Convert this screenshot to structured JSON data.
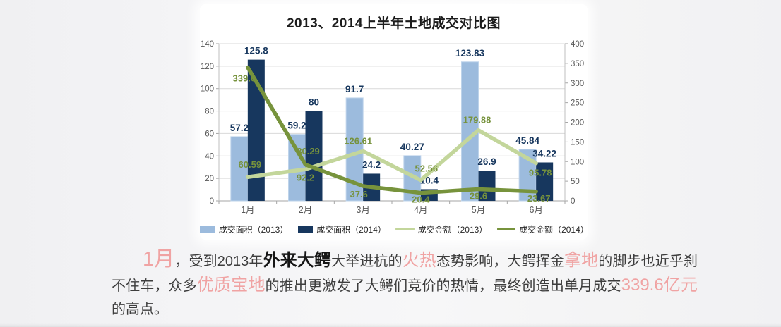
{
  "chart_data": {
    "type": "bar",
    "subtype": "combo bar+line, dual axis",
    "title": "2013、2014上半年土地成交对比图",
    "categories": [
      "1月",
      "2月",
      "3月",
      "4月",
      "5月",
      "6月"
    ],
    "series": [
      {
        "name": "成交面积（2013）",
        "kind": "bar",
        "axis": "left",
        "color": "#9cbbdd",
        "values": [
          57.2,
          59.2,
          91.7,
          40.27,
          123.83,
          45.84
        ]
      },
      {
        "name": "成交面积（2014）",
        "kind": "bar",
        "axis": "left",
        "color": "#17375e",
        "values": [
          125.8,
          80,
          24.2,
          10.4,
          26.9,
          34.22
        ]
      },
      {
        "name": "成交金额（2013）",
        "kind": "line",
        "axis": "right",
        "color": "#c3d69b",
        "values": [
          60.59,
          80.29,
          126.61,
          52.56,
          179.88,
          95.78
        ]
      },
      {
        "name": "成交金额（2014）",
        "kind": "line",
        "axis": "right",
        "color": "#77933c",
        "values": [
          339.6,
          92.2,
          37.6,
          20.4,
          29.6,
          23.67
        ]
      }
    ],
    "left_axis": {
      "min": 0,
      "max": 140,
      "step": 20,
      "ticks": [
        0,
        20,
        40,
        60,
        80,
        100,
        120,
        140
      ]
    },
    "right_axis": {
      "min": 0,
      "max": 400,
      "step": 50,
      "ticks": [
        0,
        50,
        100,
        150,
        200,
        250,
        300,
        350,
        400
      ]
    },
    "grid": true,
    "legend_position": "bottom",
    "label_colors": {
      "bar_labels": "#17375e",
      "line_labels": "#76923c"
    }
  },
  "paragraph": {
    "segments": [
      {
        "text": "1月",
        "emphasis": "pink-xl"
      },
      {
        "text": "，受到2013年",
        "emphasis": "none"
      },
      {
        "text": "外来大鳄",
        "emphasis": "black-lg"
      },
      {
        "text": "大举进杭的",
        "emphasis": "none"
      },
      {
        "text": "火热",
        "emphasis": "pink-lg"
      },
      {
        "text": "态势影响，大鳄挥金",
        "emphasis": "none"
      },
      {
        "text": "拿地",
        "emphasis": "pink-lg"
      },
      {
        "text": "的脚步也近乎刹不住车，众多",
        "emphasis": "none"
      },
      {
        "text": "优质宝地",
        "emphasis": "pink-lg"
      },
      {
        "text": "的推出更激发了大鳄们竞价的热情，最终创造出单月成交",
        "emphasis": "none"
      },
      {
        "text": "339.6亿元",
        "emphasis": "pink-lg"
      },
      {
        "text": "的高点。",
        "emphasis": "none"
      }
    ]
  }
}
